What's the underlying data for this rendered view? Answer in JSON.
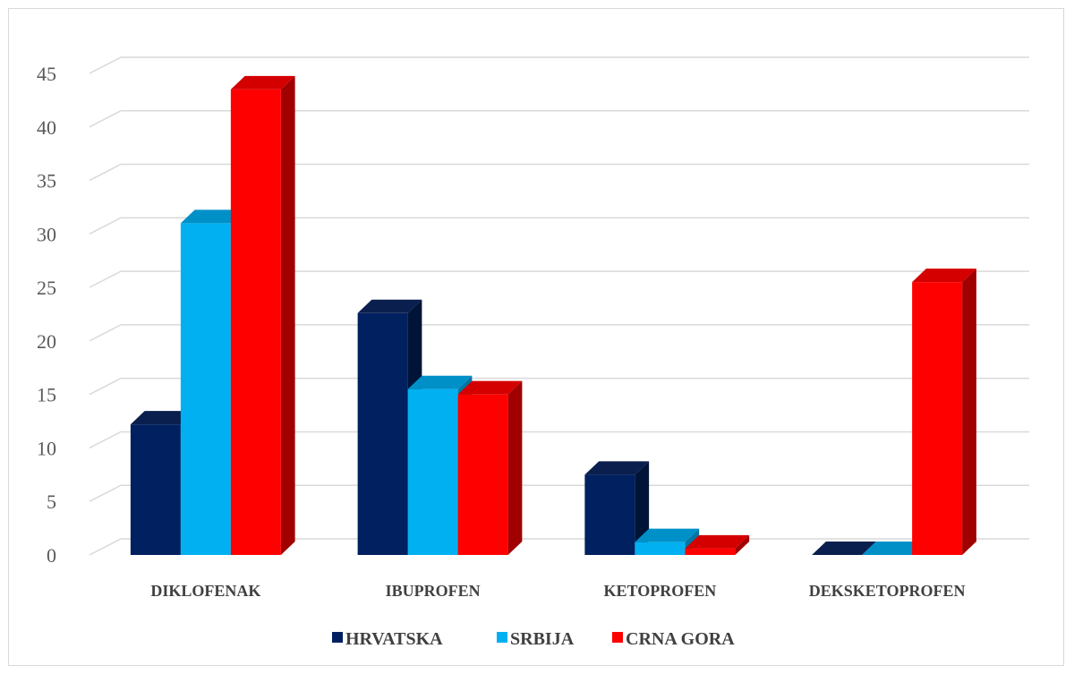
{
  "chart_data": {
    "type": "bar",
    "title": "",
    "xlabel": "",
    "ylabel": "",
    "categories": [
      "DIKLOFENAK",
      "IBUPROFEN",
      "KETOPROFEN",
      "DEKSKETOPROFEN"
    ],
    "series": [
      {
        "name": "HRVATSKA",
        "values": [
          12.2,
          22.6,
          7.5,
          0
        ],
        "color": "#002060",
        "side": "#001437",
        "top": "#0a1f4d"
      },
      {
        "name": "SRBIJA",
        "values": [
          31,
          15.5,
          1.2,
          0
        ],
        "color": "#00B0F0",
        "side": "#0076a3",
        "top": "#0090c8"
      },
      {
        "name": "CRNA GORA",
        "values": [
          43.5,
          15,
          0.6,
          25.5
        ],
        "color": "#FF0000",
        "side": "#a00000",
        "top": "#d40000"
      }
    ],
    "ylim": [
      0,
      45
    ],
    "yticks": [
      0,
      5,
      10,
      15,
      20,
      25,
      30,
      35,
      40,
      45
    ],
    "grid": true,
    "legend": "bottom"
  }
}
